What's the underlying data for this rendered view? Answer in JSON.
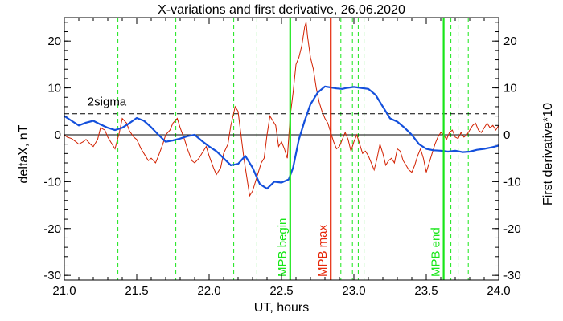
{
  "chart_data": {
    "type": "line",
    "title": "X-variations and first derivative, 26.06.2020",
    "xlabel": "UT, hours",
    "ylabel_left": "deltaX, nT",
    "ylabel_right": "First derivative*10",
    "xlim": [
      21.0,
      24.0
    ],
    "ylim": [
      -31,
      25
    ],
    "xticks": [
      21.0,
      21.5,
      22.0,
      22.5,
      23.0,
      23.5,
      24.0
    ],
    "xtick_labels": [
      "21.0",
      "21.5",
      "22.0",
      "22.5",
      "23.0",
      "23.5",
      "24.0"
    ],
    "yticks": [
      -30,
      -20,
      -10,
      0,
      10,
      20
    ],
    "ytick_labels": [
      "-30",
      "-20",
      "-10",
      "0",
      "10",
      "20"
    ],
    "colors": {
      "deltaX": "#1450dc",
      "derivative": "#d22000",
      "mpb_begin": "#19e619",
      "mpb_max": "#e6280a",
      "dashed_markers": "#19e619",
      "threshold": "#000000",
      "left_axis_label": "#1450dc",
      "right_axis_label": "#e6280a"
    },
    "zero_line": 0,
    "threshold": {
      "label": "2sigma",
      "value": 4.5
    },
    "dashed_markers_x": [
      21.37,
      21.77,
      22.17,
      22.33,
      22.91,
      22.99,
      23.03,
      23.07,
      23.67,
      23.72,
      23.79
    ],
    "vertical_lines": [
      {
        "x": 22.56,
        "label": "MPB begin",
        "color": "#19e619"
      },
      {
        "x": 22.84,
        "label": "MPB max",
        "color": "#e6280a"
      },
      {
        "x": 23.62,
        "label": "MPB end",
        "color": "#19e619"
      }
    ],
    "series": [
      {
        "name": "deltaX",
        "color": "#1450dc",
        "x": [
          21.0,
          21.05,
          21.1,
          21.15,
          21.2,
          21.25,
          21.3,
          21.35,
          21.4,
          21.45,
          21.5,
          21.55,
          21.6,
          21.65,
          21.7,
          21.75,
          21.8,
          21.85,
          21.9,
          21.95,
          22.0,
          22.05,
          22.1,
          22.15,
          22.2,
          22.25,
          22.3,
          22.35,
          22.4,
          22.45,
          22.5,
          22.55,
          22.58,
          22.62,
          22.66,
          22.7,
          22.75,
          22.8,
          22.84,
          22.88,
          22.92,
          22.95,
          23.0,
          23.05,
          23.1,
          23.15,
          23.2,
          23.25,
          23.3,
          23.35,
          23.4,
          23.45,
          23.5,
          23.55,
          23.6,
          23.65,
          23.7,
          23.75,
          23.8,
          23.85,
          23.9,
          23.95,
          24.0
        ],
        "values": [
          4.0,
          3.0,
          2.0,
          2.6,
          3.0,
          2.2,
          1.5,
          1.0,
          1.5,
          2.5,
          3.6,
          3.0,
          1.6,
          0.0,
          -1.5,
          -1.2,
          -0.8,
          -0.3,
          0.0,
          -1.3,
          -2.5,
          -3.5,
          -5.0,
          -6.5,
          -6.2,
          -4.5,
          -7.0,
          -10.5,
          -11.5,
          -10.0,
          -10.2,
          -9.5,
          -7.0,
          -1.0,
          3.0,
          6.5,
          9.0,
          10.3,
          10.1,
          9.9,
          9.8,
          10.0,
          10.2,
          10.0,
          9.8,
          8.5,
          6.0,
          3.5,
          2.8,
          1.5,
          0.0,
          -2.0,
          -3.0,
          -3.3,
          -3.4,
          -3.6,
          -3.4,
          -3.7,
          -3.6,
          -3.2,
          -3.0,
          -2.7,
          -2.3
        ]
      },
      {
        "name": "First derivative*10",
        "color": "#d22000",
        "x": [
          21.0,
          21.02,
          21.05,
          21.08,
          21.1,
          21.13,
          21.15,
          21.18,
          21.2,
          21.23,
          21.25,
          21.28,
          21.3,
          21.33,
          21.35,
          21.38,
          21.4,
          21.43,
          21.45,
          21.48,
          21.5,
          21.53,
          21.55,
          21.58,
          21.6,
          21.63,
          21.65,
          21.68,
          21.7,
          21.73,
          21.75,
          21.78,
          21.8,
          21.83,
          21.85,
          21.88,
          21.9,
          21.93,
          21.95,
          21.98,
          22.0,
          22.03,
          22.05,
          22.08,
          22.1,
          22.13,
          22.15,
          22.18,
          22.2,
          22.22,
          22.24,
          22.26,
          22.28,
          22.3,
          22.32,
          22.34,
          22.36,
          22.38,
          22.4,
          22.42,
          22.44,
          22.46,
          22.48,
          22.5,
          22.52,
          22.54,
          22.56,
          22.58,
          22.6,
          22.62,
          22.64,
          22.66,
          22.67,
          22.68,
          22.7,
          22.72,
          22.74,
          22.76,
          22.78,
          22.8,
          22.82,
          22.84,
          22.86,
          22.88,
          22.9,
          22.92,
          22.94,
          22.96,
          22.98,
          23.0,
          23.02,
          23.04,
          23.06,
          23.08,
          23.1,
          23.12,
          23.14,
          23.16,
          23.18,
          23.2,
          23.22,
          23.24,
          23.26,
          23.28,
          23.3,
          23.32,
          23.34,
          23.36,
          23.38,
          23.4,
          23.42,
          23.44,
          23.46,
          23.48,
          23.5,
          23.52,
          23.54,
          23.56,
          23.58,
          23.6,
          23.62,
          23.64,
          23.66,
          23.68,
          23.7,
          23.72,
          23.74,
          23.76,
          23.78,
          23.8,
          23.82,
          23.84,
          23.86,
          23.88,
          23.9,
          23.92,
          23.94,
          23.96,
          23.98,
          24.0
        ],
        "values": [
          0.0,
          -0.5,
          -0.8,
          -1.5,
          -2.0,
          -1.5,
          -1.0,
          -2.0,
          -2.5,
          -1.0,
          1.5,
          1.0,
          -0.5,
          -2.0,
          -3.0,
          0.5,
          3.5,
          2.5,
          0.8,
          -0.5,
          -1.0,
          -3.0,
          -4.0,
          -5.5,
          -5.0,
          -6.0,
          -4.5,
          -2.0,
          0.0,
          1.0,
          2.5,
          3.5,
          1.5,
          -1.0,
          -3.0,
          -5.5,
          -6.0,
          -5.0,
          -4.0,
          -2.5,
          -4.5,
          -7.0,
          -8.5,
          -7.0,
          -4.0,
          -2.0,
          2.0,
          6.0,
          5.0,
          0.0,
          -5.0,
          -9.0,
          -13.0,
          -12.0,
          -10.0,
          -8.0,
          -6.0,
          -5.0,
          0.0,
          4.0,
          3.0,
          2.0,
          -2.5,
          -1.5,
          -3.0,
          -5.0,
          4.0,
          9.0,
          15.0,
          16.5,
          19.0,
          23.0,
          24.0,
          21.0,
          16.5,
          14.0,
          10.0,
          7.0,
          5.0,
          3.5,
          2.5,
          0.5,
          -1.5,
          -3.0,
          -2.5,
          -1.0,
          0.5,
          -1.0,
          -3.5,
          -1.5,
          0.0,
          -2.0,
          -4.0,
          -3.5,
          -4.5,
          -6.0,
          -7.5,
          -5.0,
          -2.0,
          -4.0,
          -6.5,
          -5.5,
          -5.0,
          -6.0,
          -3.0,
          -3.5,
          -5.5,
          -6.5,
          -7.5,
          -8.0,
          -6.5,
          -4.5,
          -3.0,
          -5.0,
          -8.0,
          -6.0,
          -4.0,
          -2.0,
          -0.5,
          0.5,
          0.0,
          -1.0,
          0.5,
          1.0,
          -0.5,
          -0.8,
          0.5,
          -0.5,
          0.0,
          1.0,
          2.0,
          2.5,
          1.0,
          0.5,
          1.5,
          2.5,
          1.5,
          2.0,
          1.0,
          2.0
        ]
      }
    ]
  }
}
